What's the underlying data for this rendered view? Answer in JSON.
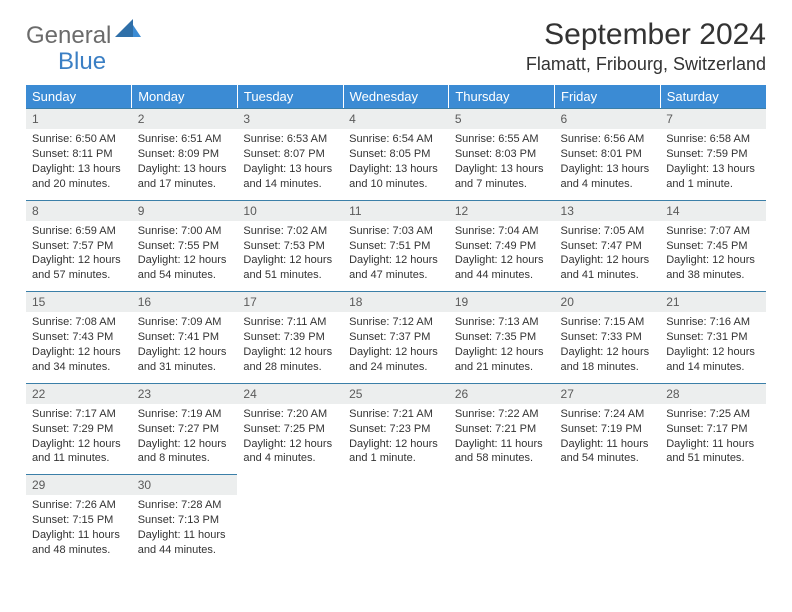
{
  "logo": {
    "general": "General",
    "blue": "Blue"
  },
  "title": "September 2024",
  "location": "Flamatt, Fribourg, Switzerland",
  "colors": {
    "header_bg": "#3b8bd4",
    "header_text": "#ffffff",
    "daynum_bg": "#eceeee",
    "daynum_border": "#3b7fa8",
    "text": "#333333",
    "logo_gray": "#6b6b6b",
    "logo_blue": "#3b7fc4"
  },
  "weekdays": [
    "Sunday",
    "Monday",
    "Tuesday",
    "Wednesday",
    "Thursday",
    "Friday",
    "Saturday"
  ],
  "days": [
    {
      "n": "1",
      "sr": "Sunrise: 6:50 AM",
      "ss": "Sunset: 8:11 PM",
      "dl1": "Daylight: 13 hours",
      "dl2": "and 20 minutes."
    },
    {
      "n": "2",
      "sr": "Sunrise: 6:51 AM",
      "ss": "Sunset: 8:09 PM",
      "dl1": "Daylight: 13 hours",
      "dl2": "and 17 minutes."
    },
    {
      "n": "3",
      "sr": "Sunrise: 6:53 AM",
      "ss": "Sunset: 8:07 PM",
      "dl1": "Daylight: 13 hours",
      "dl2": "and 14 minutes."
    },
    {
      "n": "4",
      "sr": "Sunrise: 6:54 AM",
      "ss": "Sunset: 8:05 PM",
      "dl1": "Daylight: 13 hours",
      "dl2": "and 10 minutes."
    },
    {
      "n": "5",
      "sr": "Sunrise: 6:55 AM",
      "ss": "Sunset: 8:03 PM",
      "dl1": "Daylight: 13 hours",
      "dl2": "and 7 minutes."
    },
    {
      "n": "6",
      "sr": "Sunrise: 6:56 AM",
      "ss": "Sunset: 8:01 PM",
      "dl1": "Daylight: 13 hours",
      "dl2": "and 4 minutes."
    },
    {
      "n": "7",
      "sr": "Sunrise: 6:58 AM",
      "ss": "Sunset: 7:59 PM",
      "dl1": "Daylight: 13 hours",
      "dl2": "and 1 minute."
    },
    {
      "n": "8",
      "sr": "Sunrise: 6:59 AM",
      "ss": "Sunset: 7:57 PM",
      "dl1": "Daylight: 12 hours",
      "dl2": "and 57 minutes."
    },
    {
      "n": "9",
      "sr": "Sunrise: 7:00 AM",
      "ss": "Sunset: 7:55 PM",
      "dl1": "Daylight: 12 hours",
      "dl2": "and 54 minutes."
    },
    {
      "n": "10",
      "sr": "Sunrise: 7:02 AM",
      "ss": "Sunset: 7:53 PM",
      "dl1": "Daylight: 12 hours",
      "dl2": "and 51 minutes."
    },
    {
      "n": "11",
      "sr": "Sunrise: 7:03 AM",
      "ss": "Sunset: 7:51 PM",
      "dl1": "Daylight: 12 hours",
      "dl2": "and 47 minutes."
    },
    {
      "n": "12",
      "sr": "Sunrise: 7:04 AM",
      "ss": "Sunset: 7:49 PM",
      "dl1": "Daylight: 12 hours",
      "dl2": "and 44 minutes."
    },
    {
      "n": "13",
      "sr": "Sunrise: 7:05 AM",
      "ss": "Sunset: 7:47 PM",
      "dl1": "Daylight: 12 hours",
      "dl2": "and 41 minutes."
    },
    {
      "n": "14",
      "sr": "Sunrise: 7:07 AM",
      "ss": "Sunset: 7:45 PM",
      "dl1": "Daylight: 12 hours",
      "dl2": "and 38 minutes."
    },
    {
      "n": "15",
      "sr": "Sunrise: 7:08 AM",
      "ss": "Sunset: 7:43 PM",
      "dl1": "Daylight: 12 hours",
      "dl2": "and 34 minutes."
    },
    {
      "n": "16",
      "sr": "Sunrise: 7:09 AM",
      "ss": "Sunset: 7:41 PM",
      "dl1": "Daylight: 12 hours",
      "dl2": "and 31 minutes."
    },
    {
      "n": "17",
      "sr": "Sunrise: 7:11 AM",
      "ss": "Sunset: 7:39 PM",
      "dl1": "Daylight: 12 hours",
      "dl2": "and 28 minutes."
    },
    {
      "n": "18",
      "sr": "Sunrise: 7:12 AM",
      "ss": "Sunset: 7:37 PM",
      "dl1": "Daylight: 12 hours",
      "dl2": "and 24 minutes."
    },
    {
      "n": "19",
      "sr": "Sunrise: 7:13 AM",
      "ss": "Sunset: 7:35 PM",
      "dl1": "Daylight: 12 hours",
      "dl2": "and 21 minutes."
    },
    {
      "n": "20",
      "sr": "Sunrise: 7:15 AM",
      "ss": "Sunset: 7:33 PM",
      "dl1": "Daylight: 12 hours",
      "dl2": "and 18 minutes."
    },
    {
      "n": "21",
      "sr": "Sunrise: 7:16 AM",
      "ss": "Sunset: 7:31 PM",
      "dl1": "Daylight: 12 hours",
      "dl2": "and 14 minutes."
    },
    {
      "n": "22",
      "sr": "Sunrise: 7:17 AM",
      "ss": "Sunset: 7:29 PM",
      "dl1": "Daylight: 12 hours",
      "dl2": "and 11 minutes."
    },
    {
      "n": "23",
      "sr": "Sunrise: 7:19 AM",
      "ss": "Sunset: 7:27 PM",
      "dl1": "Daylight: 12 hours",
      "dl2": "and 8 minutes."
    },
    {
      "n": "24",
      "sr": "Sunrise: 7:20 AM",
      "ss": "Sunset: 7:25 PM",
      "dl1": "Daylight: 12 hours",
      "dl2": "and 4 minutes."
    },
    {
      "n": "25",
      "sr": "Sunrise: 7:21 AM",
      "ss": "Sunset: 7:23 PM",
      "dl1": "Daylight: 12 hours",
      "dl2": "and 1 minute."
    },
    {
      "n": "26",
      "sr": "Sunrise: 7:22 AM",
      "ss": "Sunset: 7:21 PM",
      "dl1": "Daylight: 11 hours",
      "dl2": "and 58 minutes."
    },
    {
      "n": "27",
      "sr": "Sunrise: 7:24 AM",
      "ss": "Sunset: 7:19 PM",
      "dl1": "Daylight: 11 hours",
      "dl2": "and 54 minutes."
    },
    {
      "n": "28",
      "sr": "Sunrise: 7:25 AM",
      "ss": "Sunset: 7:17 PM",
      "dl1": "Daylight: 11 hours",
      "dl2": "and 51 minutes."
    },
    {
      "n": "29",
      "sr": "Sunrise: 7:26 AM",
      "ss": "Sunset: 7:15 PM",
      "dl1": "Daylight: 11 hours",
      "dl2": "and 48 minutes."
    },
    {
      "n": "30",
      "sr": "Sunrise: 7:28 AM",
      "ss": "Sunset: 7:13 PM",
      "dl1": "Daylight: 11 hours",
      "dl2": "and 44 minutes."
    }
  ]
}
